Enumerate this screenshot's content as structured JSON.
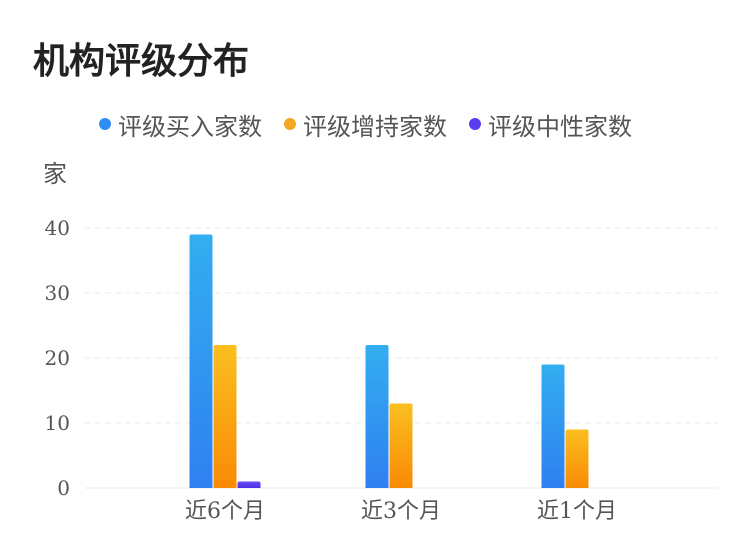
{
  "title": "机构评级分布",
  "unit_label": "家",
  "legend": [
    {
      "label": "评级买入家数",
      "color": "#2f8cf0"
    },
    {
      "label": "评级增持家数",
      "color": "#f5a623"
    },
    {
      "label": "评级中性家数",
      "color": "#5b3cf0"
    }
  ],
  "chart_data": {
    "type": "bar",
    "categories": [
      "近6个月",
      "近3个月",
      "近1个月"
    ],
    "series": [
      {
        "name": "评级买入家数",
        "values": [
          39,
          22,
          19
        ],
        "color_top": "#33aef0",
        "color_bottom": "#2f80f0"
      },
      {
        "name": "评级增持家数",
        "values": [
          22,
          13,
          9
        ],
        "color_top": "#fbbf1f",
        "color_bottom": "#f98a05"
      },
      {
        "name": "评级中性家数",
        "values": [
          1,
          0,
          0
        ],
        "color_top": "#6a4cf5",
        "color_bottom": "#4b2ee6"
      }
    ],
    "yticks": [
      0,
      10,
      20,
      30,
      40
    ],
    "ylim": [
      0,
      40
    ],
    "grid": true,
    "legend_position": "top"
  }
}
